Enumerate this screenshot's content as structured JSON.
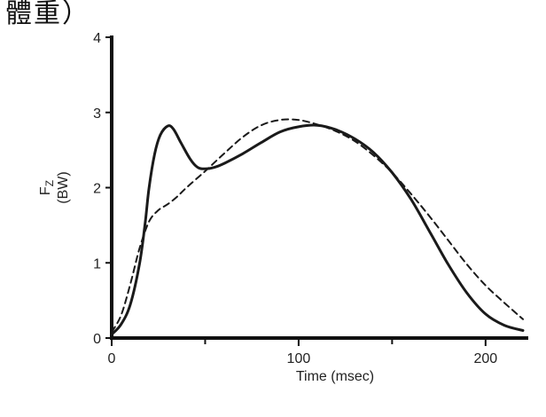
{
  "caption": "體重）",
  "chart_data": {
    "type": "line",
    "xlabel": "Time (msec)",
    "ylabel_main": "F",
    "ylabel_sub": "Z",
    "ylabel_unit": "(BW)",
    "xlim": [
      0,
      220
    ],
    "ylim": [
      0,
      4
    ],
    "x_ticks": [
      0,
      100,
      200
    ],
    "y_ticks": [
      0,
      1,
      2,
      3,
      4
    ],
    "grid": false,
    "series": [
      {
        "style": "solid",
        "color": "#1a1a1a",
        "points": [
          [
            0,
            0.05
          ],
          [
            5,
            0.18
          ],
          [
            10,
            0.45
          ],
          [
            15,
            1.0
          ],
          [
            18,
            1.55
          ],
          [
            20,
            2.0
          ],
          [
            23,
            2.45
          ],
          [
            26,
            2.7
          ],
          [
            30,
            2.82
          ],
          [
            33,
            2.78
          ],
          [
            37,
            2.6
          ],
          [
            42,
            2.38
          ],
          [
            46,
            2.27
          ],
          [
            50,
            2.25
          ],
          [
            55,
            2.27
          ],
          [
            60,
            2.32
          ],
          [
            70,
            2.45
          ],
          [
            80,
            2.6
          ],
          [
            90,
            2.74
          ],
          [
            100,
            2.81
          ],
          [
            110,
            2.83
          ],
          [
            120,
            2.77
          ],
          [
            130,
            2.65
          ],
          [
            140,
            2.47
          ],
          [
            150,
            2.2
          ],
          [
            160,
            1.85
          ],
          [
            170,
            1.42
          ],
          [
            180,
            0.98
          ],
          [
            190,
            0.6
          ],
          [
            200,
            0.32
          ],
          [
            210,
            0.17
          ],
          [
            220,
            0.1
          ]
        ]
      },
      {
        "style": "dashed",
        "color": "#1a1a1a",
        "points": [
          [
            0,
            0.08
          ],
          [
            5,
            0.3
          ],
          [
            10,
            0.72
          ],
          [
            15,
            1.2
          ],
          [
            20,
            1.55
          ],
          [
            25,
            1.7
          ],
          [
            30,
            1.78
          ],
          [
            35,
            1.88
          ],
          [
            40,
            2.0
          ],
          [
            50,
            2.22
          ],
          [
            60,
            2.45
          ],
          [
            70,
            2.67
          ],
          [
            80,
            2.83
          ],
          [
            90,
            2.9
          ],
          [
            100,
            2.9
          ],
          [
            110,
            2.84
          ],
          [
            120,
            2.75
          ],
          [
            130,
            2.62
          ],
          [
            140,
            2.43
          ],
          [
            150,
            2.2
          ],
          [
            160,
            1.92
          ],
          [
            170,
            1.62
          ],
          [
            180,
            1.3
          ],
          [
            190,
            0.98
          ],
          [
            200,
            0.7
          ],
          [
            210,
            0.47
          ],
          [
            220,
            0.25
          ]
        ]
      }
    ]
  }
}
